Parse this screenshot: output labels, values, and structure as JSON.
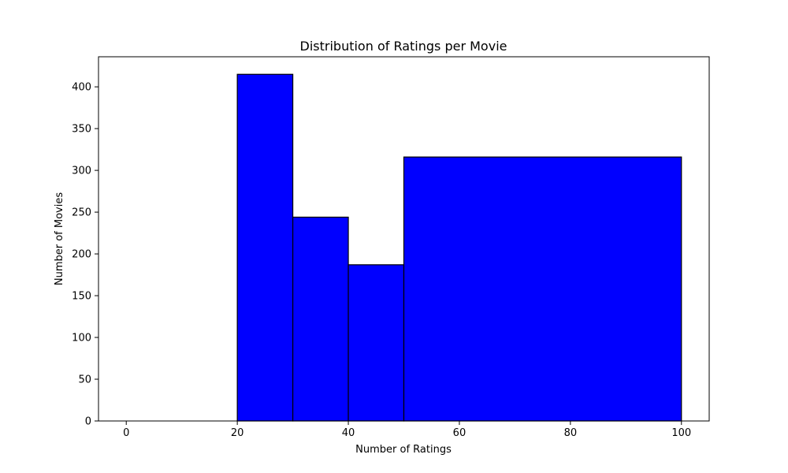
{
  "chart_data": {
    "type": "bar",
    "title": "Distribution of Ratings per Movie",
    "xlabel": "Number of Ratings",
    "ylabel": "Number of Movies",
    "bins": [
      {
        "start": 0,
        "end": 5,
        "value": 0
      },
      {
        "start": 5,
        "end": 10,
        "value": 0
      },
      {
        "start": 10,
        "end": 20,
        "value": 0
      },
      {
        "start": 20,
        "end": 30,
        "value": 415
      },
      {
        "start": 30,
        "end": 40,
        "value": 244
      },
      {
        "start": 40,
        "end": 50,
        "value": 187
      },
      {
        "start": 50,
        "end": 100,
        "value": 316
      }
    ],
    "xlim": [
      -5,
      105
    ],
    "ylim": [
      0,
      436
    ],
    "xticks": [
      0,
      20,
      40,
      60,
      80,
      100
    ],
    "yticks": [
      0,
      50,
      100,
      150,
      200,
      250,
      300,
      350,
      400
    ],
    "grid": false,
    "colors": {
      "bar_fill": "#0000ff",
      "bar_edge": "#000000",
      "axis": "#000000"
    }
  }
}
